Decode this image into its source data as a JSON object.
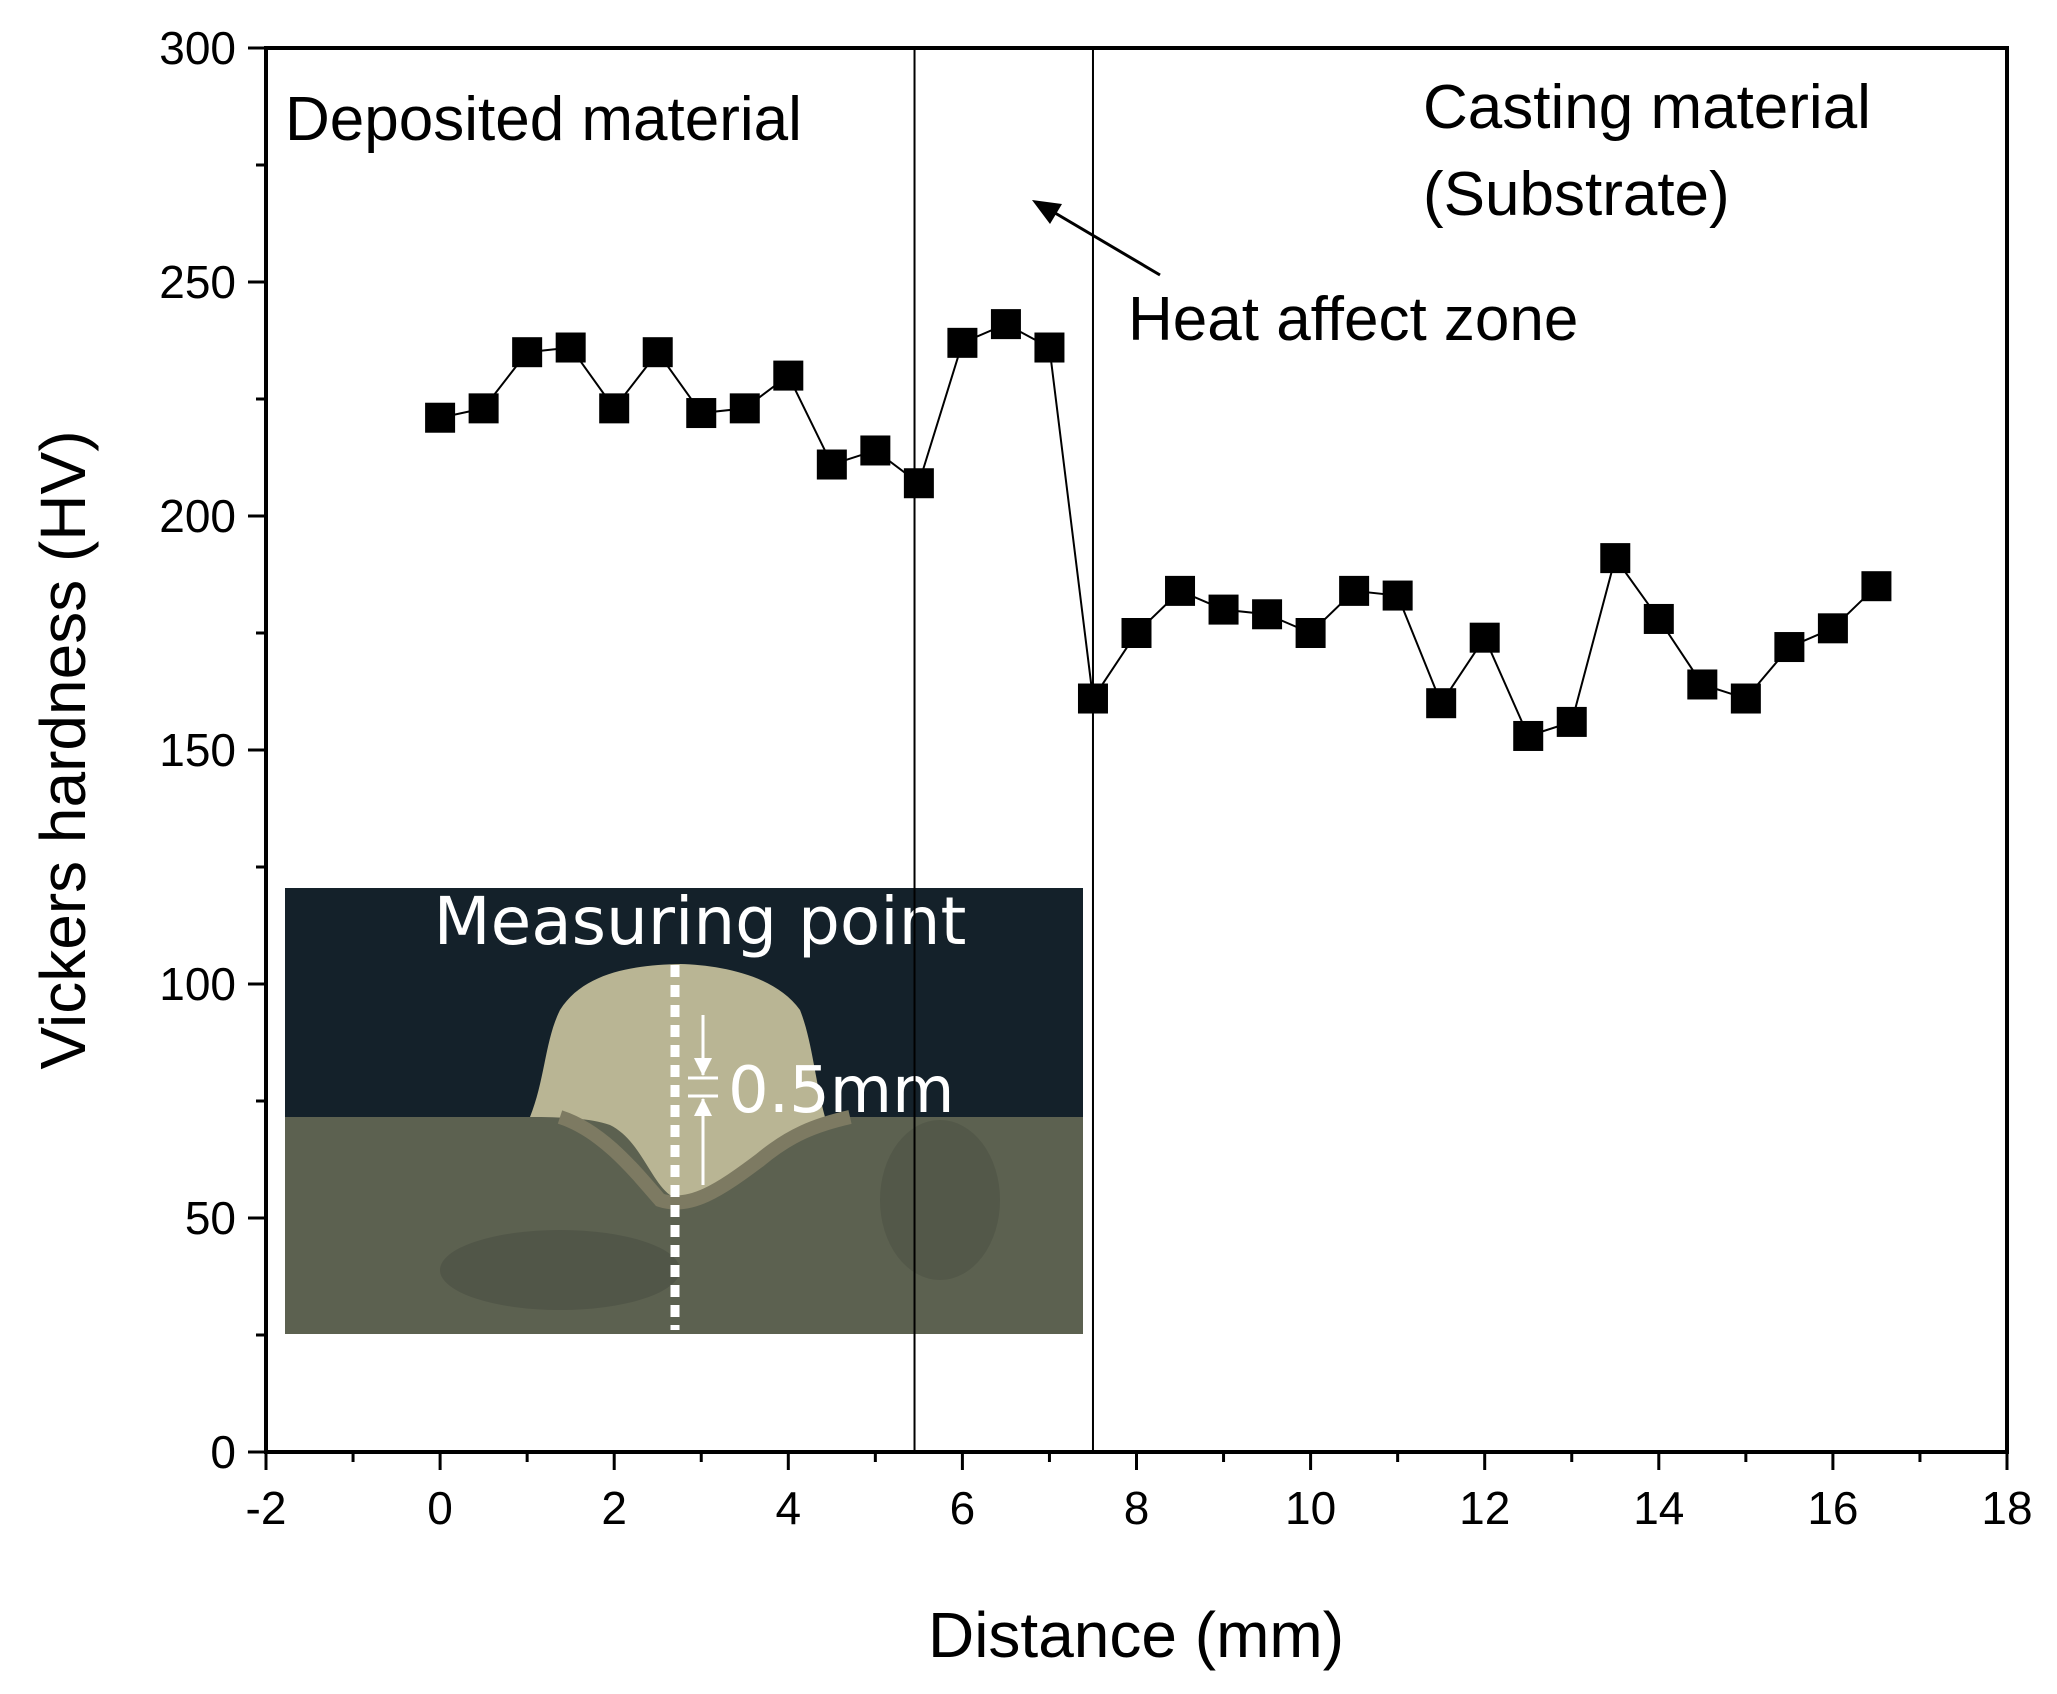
{
  "chart_data": {
    "type": "line",
    "xlabel": "Distance (mm)",
    "ylabel": "Vickers hardness (HV)",
    "xlim": [
      -2,
      18
    ],
    "ylim": [
      0,
      300
    ],
    "x_ticks": [
      -2,
      0,
      2,
      4,
      6,
      8,
      10,
      12,
      14,
      16,
      18
    ],
    "y_ticks": [
      0,
      50,
      100,
      150,
      200,
      250,
      300
    ],
    "grid": false,
    "marker": "square",
    "series": [
      {
        "x": [
          0,
          0.5,
          1,
          1.5,
          2,
          2.5,
          3,
          3.5,
          4,
          4.5,
          5,
          5.5,
          6,
          6.5,
          7,
          7.5,
          8,
          8.5,
          9,
          9.5,
          10,
          10.5,
          11,
          11.5,
          12,
          12.5,
          13,
          13.5,
          14,
          14.5,
          15,
          15.5,
          16,
          16.5
        ],
        "y": [
          221,
          223,
          235,
          236,
          223,
          235,
          222,
          223,
          230,
          211,
          214,
          207,
          237,
          241,
          236,
          161,
          175,
          184,
          180,
          179,
          175,
          184,
          183,
          160,
          174,
          153,
          156,
          191,
          178,
          164,
          161,
          172,
          176,
          185
        ]
      }
    ],
    "vlines": [
      5.45,
      7.5
    ],
    "annotations": {
      "deposited": "Deposited material",
      "casting_line1": "Casting material",
      "casting_line2": "(Substrate)",
      "haz": "Heat affect zone"
    },
    "inset": {
      "title": "Measuring point",
      "scale_label": "0.5mm"
    }
  }
}
